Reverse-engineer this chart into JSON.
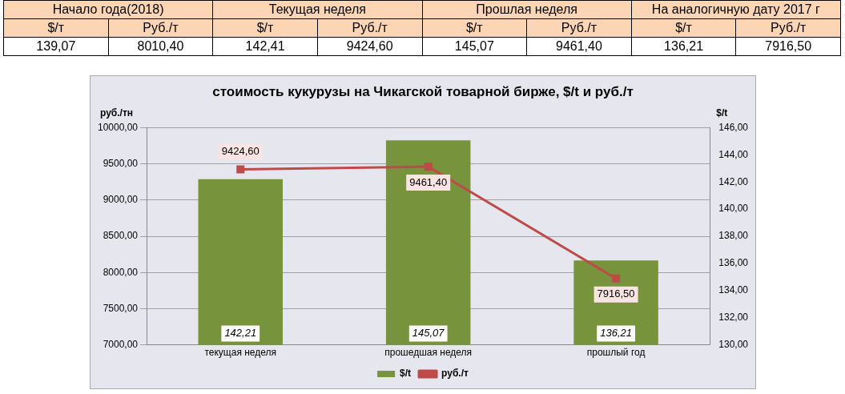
{
  "chart_data": [
    {
      "type": "other",
      "annotations": [
        "Начало года(2018)",
        "Текущая неделя",
        "Прошлая неделя",
        "На аналогичную дату 2017 г",
        "$/т",
        "Руб./т",
        "$/т",
        "Руб./т",
        "$/т",
        "Руб./т",
        "$/т",
        "Руб./т",
        "139,07",
        "8010,40",
        "142,41",
        "9424,60",
        "145,07",
        "9461,40",
        "136,21",
        "7916,50"
      ]
    },
    {
      "type": "bar",
      "title": "стоимость кукурузы на Чикагской товарной бирже, $/t и руб./т",
      "categories": [
        "текущая неделя",
        "прошедшая неделя",
        "прошлый год"
      ],
      "series": [
        {
          "name": "$/t",
          "type": "bar",
          "axis": "y2",
          "color": "#77933c",
          "values": [
            142.21,
            145.07,
            136.21
          ],
          "value_labels": [
            "142,21",
            "145,07",
            "136,21"
          ]
        },
        {
          "name": "руб./т",
          "type": "line",
          "color": "#be4b48",
          "values": [
            9424.6,
            9461.4,
            7916.5
          ],
          "value_labels": [
            "9424,60",
            "9461,40",
            "7916,50"
          ]
        }
      ],
      "ylabel": "руб./тн",
      "y2label": "$/t",
      "ylim": [
        7000,
        10000
      ],
      "yticks": [
        {
          "value": 7000,
          "label": "7000,00"
        },
        {
          "value": 7500,
          "label": "7500,00"
        },
        {
          "value": 8000,
          "label": "8000,00"
        },
        {
          "value": 8500,
          "label": "8500,00"
        },
        {
          "value": 9000,
          "label": "9000,00"
        },
        {
          "value": 9500,
          "label": "9500,00"
        },
        {
          "value": 10000,
          "label": "10000,00"
        }
      ],
      "y2lim": [
        130,
        146
      ],
      "y2ticks": [
        {
          "value": 130,
          "label": "130,00"
        },
        {
          "value": 132,
          "label": "132,00"
        },
        {
          "value": 134,
          "label": "134,00"
        },
        {
          "value": 136,
          "label": "136,00"
        },
        {
          "value": 138,
          "label": "138,00"
        },
        {
          "value": 140,
          "label": "140,00"
        },
        {
          "value": 142,
          "label": "142,00"
        },
        {
          "value": 144,
          "label": "144,00"
        },
        {
          "value": 146,
          "label": "146,00"
        }
      ],
      "grid": "y",
      "legend": "bottom",
      "marker": "square"
    }
  ]
}
